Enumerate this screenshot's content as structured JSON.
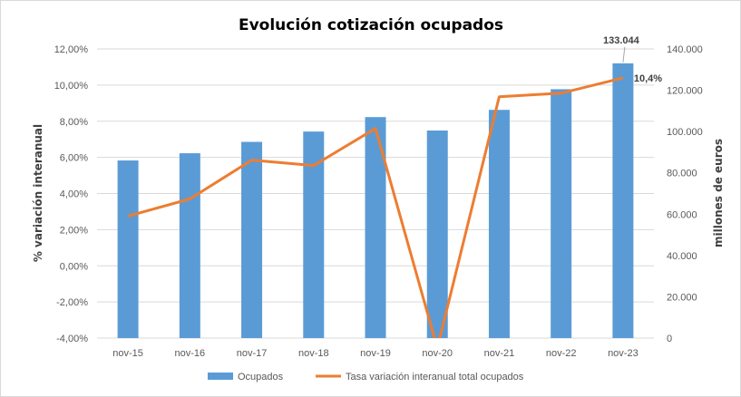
{
  "colors": {
    "bars": "#5b9bd5",
    "line": "#ed7d31",
    "grid": "#d9d9d9"
  },
  "chart_data": {
    "type": "bar",
    "title": "Evolución cotización ocupados",
    "ylabel": "% variación interanual",
    "y2label": "millones de euros",
    "categories": [
      "nov-15",
      "nov-16",
      "nov-17",
      "nov-18",
      "nov-19",
      "nov-20",
      "nov-21",
      "nov-22",
      "nov-23"
    ],
    "ylim": [
      -0.04,
      0.12
    ],
    "y2lim": [
      0,
      140000
    ],
    "yticks": [
      "-4,00%",
      "-2,00%",
      "0,00%",
      "2,00%",
      "4,00%",
      "6,00%",
      "8,00%",
      "10,00%",
      "12,00%"
    ],
    "y2ticks": [
      "0",
      "20.000",
      "40.000",
      "60.000",
      "80.000",
      "100.000",
      "120.000",
      "140.000"
    ],
    "grid": true,
    "legend_position": "bottom",
    "series": [
      {
        "name": "Ocupados",
        "type": "bar",
        "axis": "right",
        "values": [
          86000,
          89500,
          95000,
          100000,
          107000,
          100500,
          110500,
          120500,
          133044
        ]
      },
      {
        "name": "Tasa variación interanual total ocupados",
        "type": "line",
        "axis": "left",
        "values": [
          0.0275,
          0.037,
          0.0585,
          0.0555,
          0.076,
          -0.0455,
          0.0935,
          0.0955,
          0.104
        ]
      }
    ],
    "annotations": {
      "last_bar_label": "133.044",
      "last_line_label": "10,4%"
    }
  }
}
